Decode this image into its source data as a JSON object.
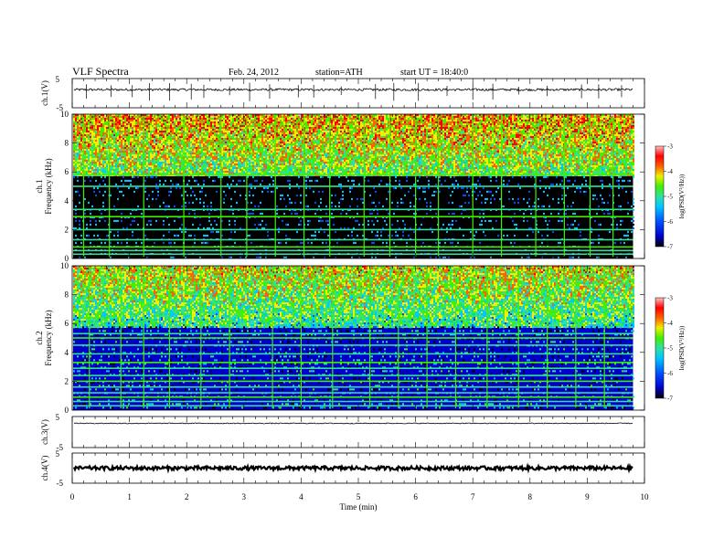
{
  "header": {
    "title": "VLF  Spectra",
    "date": "Feb. 24, 2012",
    "station": "station=ATH",
    "start": "start  UT =    18:40:0"
  },
  "chart_data": [
    {
      "type": "line",
      "panel": "ch1-waveform",
      "ylabel": "ch.1(V)",
      "ylim": [
        -5,
        5
      ],
      "yticks": [
        "5",
        "-5"
      ],
      "baseline": 1.2,
      "noise_amplitude": 0.4,
      "spikes": [
        0.25,
        0.68,
        1.05,
        1.35,
        1.7,
        2.08,
        2.3,
        2.75,
        3.1,
        3.45,
        3.95,
        4.22,
        4.7,
        5.3,
        5.62,
        6.05,
        6.55,
        7.0,
        7.35,
        7.8,
        8.3,
        8.9,
        9.2,
        9.6
      ],
      "color": "#000000"
    },
    {
      "type": "heatmap",
      "panel": "ch1-spectrogram",
      "ylabel": "ch.1",
      "ylabel2": "Frequency  (kHz)",
      "ylim": [
        0,
        10
      ],
      "yticks": [
        "0",
        "2",
        "4",
        "6",
        "8",
        "10"
      ],
      "colorbar": {
        "label": "log(PSD(V²/Hz))",
        "range": [
          -7,
          -3
        ],
        "ticks": [
          "-3",
          "-4",
          "-5",
          "-6",
          "-7"
        ]
      },
      "colormap": [
        "#000000",
        "#0000c8",
        "#0050ff",
        "#00c8ff",
        "#30e0a0",
        "#40f000",
        "#f0f000",
        "#ff6000",
        "#ff0000",
        "#ffc0c0"
      ],
      "background_log_psd": -6.7,
      "band_edge_khz": 5.7,
      "upper_band_log_psd": -4.9,
      "lines_khz": [
        0.3,
        0.55,
        0.8,
        1.3,
        2.0,
        2.9,
        3.4,
        5.0,
        5.8
      ],
      "transients_min": [
        0.2,
        0.65,
        1.25,
        1.95,
        2.6,
        3.05,
        3.55,
        4.05,
        4.5,
        5.1,
        5.55,
        6.0,
        6.4,
        7.0,
        7.5,
        8.1,
        8.6,
        9.05,
        9.45
      ]
    },
    {
      "type": "heatmap",
      "panel": "ch2-spectrogram",
      "ylabel": "ch.2",
      "ylabel2": "Frequency  (kHz)",
      "ylim": [
        0,
        10
      ],
      "yticks": [
        "0",
        "2",
        "4",
        "6",
        "8",
        "10"
      ],
      "colorbar": {
        "label": "log(PSD(V²/Hz))",
        "range": [
          -7,
          -3
        ],
        "ticks": [
          "-3",
          "-4",
          "-5",
          "-6",
          "-7"
        ]
      },
      "colormap": [
        "#000000",
        "#0000c8",
        "#0050ff",
        "#00c8ff",
        "#30e0a0",
        "#40f000",
        "#f0f000",
        "#ff6000",
        "#ff0000",
        "#ffc0c0"
      ],
      "background_log_psd": -6.2,
      "band_edge_khz": 5.8,
      "upper_band_log_psd": -5.2,
      "lines_khz": [
        0.3,
        0.6,
        0.9,
        1.2,
        1.6,
        2.0,
        2.4,
        2.9,
        3.3,
        3.9,
        4.5,
        5.0,
        5.3
      ],
      "transients_min": [
        0.3,
        0.85,
        1.25,
        1.7,
        2.25,
        2.75,
        3.5,
        4.0,
        4.55,
        5.2,
        5.7,
        6.2,
        6.7,
        7.25,
        7.8,
        8.3,
        8.8,
        9.3
      ]
    },
    {
      "type": "line",
      "panel": "ch3-waveform",
      "ylabel": "ch.3(V)",
      "ylim": [
        -5,
        5
      ],
      "yticks": [
        "5",
        "-5"
      ],
      "baseline": 2.8,
      "noise_amplitude": 0.15,
      "spikes": [],
      "color": "#000000"
    },
    {
      "type": "line",
      "panel": "ch4-waveform",
      "ylabel": "ch.4(V)",
      "ylim": [
        -5,
        5
      ],
      "yticks": [
        "5",
        "-5"
      ],
      "baseline": 0.0,
      "noise_amplitude": 0.6,
      "spikes": [],
      "color": "#000000"
    }
  ],
  "x_axis": {
    "label": "Time  (min)",
    "range": [
      0,
      10
    ],
    "ticks": [
      "0",
      "1",
      "2",
      "3",
      "4",
      "5",
      "6",
      "7",
      "8",
      "9",
      "10"
    ],
    "data_end": 9.8
  }
}
